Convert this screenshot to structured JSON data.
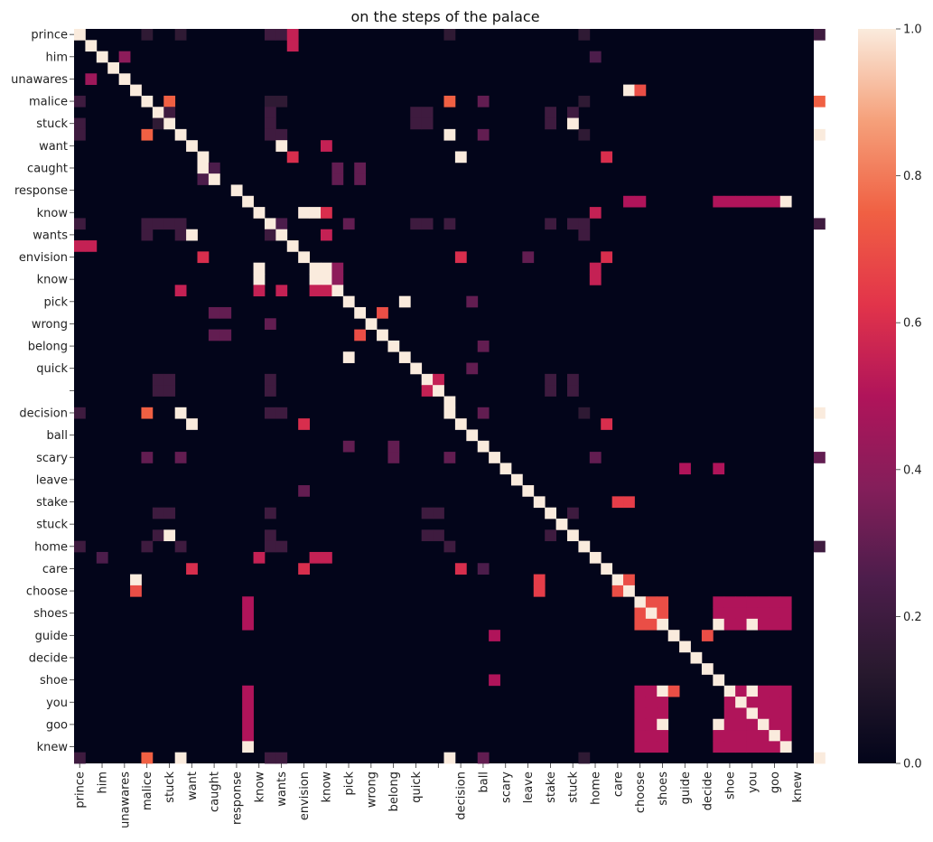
{
  "chart_data": {
    "type": "heatmap",
    "title": "on the steps of the palace",
    "colormap": "rocket",
    "colorbar": {
      "min": 0.0,
      "max": 1.0,
      "ticks": [
        "0.0",
        "0.2",
        "0.4",
        "0.6",
        "0.8",
        "1.0"
      ]
    },
    "tokens": [
      "prince",
      "",
      "him",
      "",
      "unawares",
      "",
      "malice",
      "",
      "stuck",
      "",
      "want",
      "",
      "caught",
      "",
      "response",
      "",
      "know",
      "",
      "wants",
      "",
      "envision",
      "",
      "know",
      "",
      "pick",
      "",
      "wrong",
      "",
      "belong",
      "",
      "quick",
      "",
      "",
      "",
      "decision",
      "",
      "ball",
      "",
      "scary",
      "",
      "leave",
      "",
      "stake",
      "",
      "stuck",
      "",
      "home",
      "",
      "care",
      "",
      "choose",
      "",
      "shoes",
      "",
      "guide",
      "",
      "decide",
      "",
      "shoe",
      "",
      "you",
      "",
      "goo",
      "",
      "knew",
      ""
    ],
    "cells": [
      [
        0,
        0,
        1
      ],
      [
        0,
        6,
        0.15
      ],
      [
        0,
        9,
        0.15
      ],
      [
        0,
        17,
        0.2
      ],
      [
        0,
        18,
        0.2
      ],
      [
        0,
        19,
        0.55
      ],
      [
        0,
        33,
        0.15
      ],
      [
        0,
        45,
        0.15
      ],
      [
        0,
        66,
        0.2
      ],
      [
        1,
        1,
        1
      ],
      [
        1,
        19,
        0.55
      ],
      [
        2,
        2,
        1
      ],
      [
        2,
        4,
        0.4
      ],
      [
        2,
        46,
        0.25
      ],
      [
        3,
        3,
        1
      ],
      [
        4,
        1,
        0.45
      ],
      [
        4,
        4,
        1
      ],
      [
        5,
        5,
        1
      ],
      [
        5,
        49,
        1
      ],
      [
        5,
        50,
        0.7
      ],
      [
        6,
        0,
        0.2
      ],
      [
        6,
        6,
        1
      ],
      [
        6,
        8,
        0.75
      ],
      [
        6,
        17,
        0.15
      ],
      [
        6,
        18,
        0.15
      ],
      [
        6,
        33,
        0.75
      ],
      [
        6,
        36,
        0.3
      ],
      [
        6,
        45,
        0.15
      ],
      [
        6,
        66,
        0.75
      ],
      [
        7,
        7,
        1
      ],
      [
        7,
        8,
        0.2
      ],
      [
        7,
        17,
        0.2
      ],
      [
        7,
        30,
        0.2
      ],
      [
        7,
        31,
        0.2
      ],
      [
        7,
        42,
        0.2
      ],
      [
        7,
        44,
        0.2
      ],
      [
        8,
        0,
        0.2
      ],
      [
        8,
        7,
        0.15
      ],
      [
        8,
        8,
        1
      ],
      [
        8,
        17,
        0.2
      ],
      [
        8,
        30,
        0.2
      ],
      [
        8,
        31,
        0.2
      ],
      [
        8,
        42,
        0.2
      ],
      [
        8,
        44,
        1
      ],
      [
        9,
        0,
        0.2
      ],
      [
        9,
        6,
        0.75
      ],
      [
        9,
        9,
        1
      ],
      [
        9,
        17,
        0.2
      ],
      [
        9,
        18,
        0.2
      ],
      [
        9,
        33,
        1
      ],
      [
        9,
        36,
        0.3
      ],
      [
        9,
        45,
        0.15
      ],
      [
        9,
        66,
        1
      ],
      [
        10,
        10,
        1
      ],
      [
        10,
        18,
        1
      ],
      [
        10,
        22,
        0.55
      ],
      [
        11,
        11,
        1
      ],
      [
        11,
        19,
        0.6
      ],
      [
        11,
        34,
        1
      ],
      [
        11,
        47,
        0.6
      ],
      [
        12,
        11,
        1
      ],
      [
        12,
        12,
        0.25
      ],
      [
        12,
        23,
        0.3
      ],
      [
        12,
        25,
        0.3
      ],
      [
        13,
        11,
        0.25
      ],
      [
        13,
        12,
        1
      ],
      [
        13,
        23,
        0.3
      ],
      [
        13,
        25,
        0.3
      ],
      [
        14,
        14,
        1
      ],
      [
        15,
        15,
        1
      ],
      [
        15,
        49,
        0.5
      ],
      [
        15,
        50,
        0.5
      ],
      [
        15,
        57,
        0.5
      ],
      [
        15,
        58,
        0.5
      ],
      [
        15,
        59,
        0.5
      ],
      [
        15,
        60,
        0.5
      ],
      [
        15,
        61,
        0.5
      ],
      [
        15,
        62,
        0.5
      ],
      [
        15,
        63,
        1
      ],
      [
        16,
        16,
        1
      ],
      [
        16,
        20,
        1
      ],
      [
        16,
        21,
        1
      ],
      [
        16,
        22,
        0.6
      ],
      [
        16,
        46,
        0.55
      ],
      [
        17,
        0,
        0.2
      ],
      [
        17,
        6,
        0.2
      ],
      [
        17,
        7,
        0.2
      ],
      [
        17,
        8,
        0.2
      ],
      [
        17,
        9,
        0.2
      ],
      [
        17,
        17,
        1
      ],
      [
        17,
        18,
        0.25
      ],
      [
        17,
        24,
        0.3
      ],
      [
        17,
        30,
        0.2
      ],
      [
        17,
        31,
        0.2
      ],
      [
        17,
        33,
        0.2
      ],
      [
        17,
        42,
        0.2
      ],
      [
        17,
        44,
        0.2
      ],
      [
        17,
        45,
        0.2
      ],
      [
        17,
        66,
        0.2
      ],
      [
        18,
        6,
        0.2
      ],
      [
        18,
        9,
        0.2
      ],
      [
        18,
        10,
        1
      ],
      [
        18,
        17,
        0.2
      ],
      [
        18,
        18,
        1
      ],
      [
        18,
        22,
        0.55
      ],
      [
        18,
        45,
        0.2
      ],
      [
        19,
        0,
        0.55
      ],
      [
        19,
        1,
        0.55
      ],
      [
        19,
        19,
        1
      ],
      [
        20,
        11,
        0.6
      ],
      [
        20,
        20,
        1
      ],
      [
        20,
        34,
        0.6
      ],
      [
        20,
        40,
        0.3
      ],
      [
        20,
        47,
        0.6
      ],
      [
        21,
        16,
        1
      ],
      [
        21,
        21,
        1
      ],
      [
        21,
        22,
        1
      ],
      [
        21,
        23,
        0.4
      ],
      [
        21,
        46,
        0.55
      ],
      [
        22,
        16,
        1
      ],
      [
        22,
        21,
        1
      ],
      [
        22,
        22,
        1
      ],
      [
        22,
        23,
        0.4
      ],
      [
        22,
        46,
        0.55
      ],
      [
        23,
        9,
        0.55
      ],
      [
        23,
        16,
        0.55
      ],
      [
        23,
        18,
        0.55
      ],
      [
        23,
        21,
        0.55
      ],
      [
        23,
        22,
        0.55
      ],
      [
        23,
        23,
        1
      ],
      [
        24,
        24,
        1
      ],
      [
        24,
        29,
        1
      ],
      [
        24,
        35,
        0.3
      ],
      [
        25,
        12,
        0.3
      ],
      [
        25,
        13,
        0.3
      ],
      [
        25,
        25,
        1
      ],
      [
        25,
        27,
        0.7
      ],
      [
        26,
        17,
        0.3
      ],
      [
        26,
        26,
        1
      ],
      [
        27,
        12,
        0.3
      ],
      [
        27,
        13,
        0.3
      ],
      [
        27,
        25,
        0.7
      ],
      [
        27,
        27,
        1
      ],
      [
        28,
        28,
        1
      ],
      [
        28,
        36,
        0.3
      ],
      [
        29,
        24,
        1
      ],
      [
        29,
        29,
        1
      ],
      [
        30,
        30,
        1
      ],
      [
        30,
        35,
        0.3
      ],
      [
        31,
        7,
        0.2
      ],
      [
        31,
        8,
        0.2
      ],
      [
        31,
        17,
        0.2
      ],
      [
        31,
        31,
        1
      ],
      [
        31,
        32,
        0.55
      ],
      [
        31,
        42,
        0.2
      ],
      [
        31,
        44,
        0.2
      ],
      [
        32,
        7,
        0.2
      ],
      [
        32,
        8,
        0.2
      ],
      [
        32,
        17,
        0.2
      ],
      [
        32,
        31,
        0.55
      ],
      [
        32,
        32,
        1
      ],
      [
        32,
        42,
        0.2
      ],
      [
        32,
        44,
        0.2
      ],
      [
        33,
        33,
        1
      ],
      [
        34,
        0,
        0.2
      ],
      [
        34,
        6,
        0.75
      ],
      [
        34,
        9,
        1
      ],
      [
        34,
        17,
        0.2
      ],
      [
        34,
        18,
        0.2
      ],
      [
        34,
        33,
        1
      ],
      [
        34,
        36,
        0.3
      ],
      [
        34,
        45,
        0.15
      ],
      [
        34,
        66,
        1
      ],
      [
        35,
        10,
        1
      ],
      [
        35,
        20,
        0.6
      ],
      [
        35,
        34,
        1
      ],
      [
        35,
        47,
        0.6
      ],
      [
        36,
        35,
        1
      ],
      [
        37,
        24,
        0.3
      ],
      [
        37,
        28,
        0.3
      ],
      [
        37,
        36,
        1
      ],
      [
        38,
        6,
        0.3
      ],
      [
        38,
        9,
        0.3
      ],
      [
        38,
        28,
        0.3
      ],
      [
        38,
        33,
        0.3
      ],
      [
        38,
        37,
        1
      ],
      [
        38,
        46,
        0.3
      ],
      [
        38,
        66,
        0.3
      ],
      [
        39,
        38,
        1
      ],
      [
        39,
        54,
        0.5
      ],
      [
        39,
        57,
        0.5
      ],
      [
        40,
        39,
        1
      ],
      [
        41,
        20,
        0.3
      ],
      [
        41,
        40,
        1
      ],
      [
        42,
        41,
        1
      ],
      [
        42,
        48,
        0.65
      ],
      [
        42,
        49,
        0.65
      ],
      [
        43,
        7,
        0.2
      ],
      [
        43,
        8,
        0.2
      ],
      [
        43,
        17,
        0.2
      ],
      [
        43,
        31,
        0.2
      ],
      [
        43,
        32,
        0.2
      ],
      [
        43,
        42,
        1
      ],
      [
        43,
        44,
        0.2
      ],
      [
        44,
        43,
        1
      ],
      [
        45,
        7,
        0.2
      ],
      [
        45,
        8,
        1
      ],
      [
        45,
        17,
        0.2
      ],
      [
        45,
        31,
        0.2
      ],
      [
        45,
        32,
        0.2
      ],
      [
        45,
        42,
        0.2
      ],
      [
        45,
        44,
        1
      ],
      [
        46,
        0,
        0.2
      ],
      [
        46,
        6,
        0.2
      ],
      [
        46,
        9,
        0.2
      ],
      [
        46,
        17,
        0.2
      ],
      [
        46,
        18,
        0.2
      ],
      [
        46,
        33,
        0.2
      ],
      [
        46,
        45,
        1
      ],
      [
        46,
        66,
        0.2
      ],
      [
        47,
        2,
        0.25
      ],
      [
        47,
        16,
        0.55
      ],
      [
        47,
        21,
        0.55
      ],
      [
        47,
        22,
        0.55
      ],
      [
        47,
        46,
        1
      ],
      [
        48,
        10,
        0.6
      ],
      [
        48,
        20,
        0.6
      ],
      [
        48,
        34,
        0.6
      ],
      [
        48,
        36,
        0.25
      ],
      [
        48,
        47,
        1
      ],
      [
        49,
        5,
        1
      ],
      [
        49,
        41,
        0.65
      ],
      [
        49,
        48,
        1
      ],
      [
        49,
        49,
        0.7
      ],
      [
        50,
        5,
        0.7
      ],
      [
        50,
        41,
        0.65
      ],
      [
        50,
        48,
        0.7
      ],
      [
        50,
        49,
        1
      ],
      [
        51,
        15,
        0.5
      ],
      [
        51,
        50,
        1
      ],
      [
        51,
        51,
        0.7
      ],
      [
        51,
        52,
        0.7
      ],
      [
        51,
        57,
        0.5
      ],
      [
        51,
        58,
        0.5
      ],
      [
        51,
        59,
        0.5
      ],
      [
        51,
        60,
        0.5
      ],
      [
        51,
        61,
        0.5
      ],
      [
        51,
        62,
        0.5
      ],
      [
        51,
        63,
        0.5
      ],
      [
        52,
        15,
        0.5
      ],
      [
        52,
        50,
        0.7
      ],
      [
        52,
        51,
        1
      ],
      [
        52,
        52,
        0.7
      ],
      [
        52,
        57,
        0.5
      ],
      [
        52,
        58,
        0.5
      ],
      [
        52,
        59,
        0.5
      ],
      [
        52,
        60,
        0.5
      ],
      [
        52,
        61,
        0.5
      ],
      [
        52,
        62,
        0.5
      ],
      [
        52,
        63,
        0.5
      ],
      [
        53,
        15,
        0.5
      ],
      [
        53,
        50,
        0.7
      ],
      [
        53,
        51,
        0.7
      ],
      [
        53,
        52,
        1
      ],
      [
        53,
        57,
        1
      ],
      [
        53,
        58,
        0.5
      ],
      [
        53,
        59,
        0.5
      ],
      [
        53,
        60,
        1
      ],
      [
        53,
        61,
        0.5
      ],
      [
        53,
        62,
        0.5
      ],
      [
        53,
        63,
        0.5
      ],
      [
        54,
        37,
        0.5
      ],
      [
        54,
        53,
        1
      ],
      [
        54,
        56,
        0.7
      ],
      [
        55,
        54,
        1
      ],
      [
        56,
        55,
        1
      ],
      [
        57,
        56,
        1
      ],
      [
        58,
        37,
        0.5
      ],
      [
        58,
        57,
        1
      ],
      [
        59,
        15,
        0.5
      ],
      [
        59,
        50,
        0.5
      ],
      [
        59,
        51,
        0.5
      ],
      [
        59,
        52,
        1
      ],
      [
        59,
        53,
        0.7
      ],
      [
        59,
        58,
        1
      ],
      [
        59,
        59,
        0.5
      ],
      [
        59,
        60,
        1
      ],
      [
        59,
        61,
        0.5
      ],
      [
        59,
        62,
        0.5
      ],
      [
        59,
        63,
        0.5
      ],
      [
        60,
        15,
        0.5
      ],
      [
        60,
        50,
        0.5
      ],
      [
        60,
        51,
        0.5
      ],
      [
        60,
        52,
        0.5
      ],
      [
        60,
        58,
        0.5
      ],
      [
        60,
        59,
        1
      ],
      [
        60,
        60,
        0.5
      ],
      [
        60,
        61,
        0.5
      ],
      [
        60,
        62,
        0.5
      ],
      [
        60,
        63,
        0.5
      ],
      [
        61,
        15,
        0.5
      ],
      [
        61,
        50,
        0.5
      ],
      [
        61,
        51,
        0.5
      ],
      [
        61,
        52,
        0.5
      ],
      [
        61,
        58,
        0.5
      ],
      [
        61,
        59,
        0.5
      ],
      [
        61,
        60,
        1
      ],
      [
        61,
        61,
        0.5
      ],
      [
        61,
        62,
        0.5
      ],
      [
        61,
        63,
        0.5
      ],
      [
        62,
        15,
        0.5
      ],
      [
        62,
        50,
        0.5
      ],
      [
        62,
        51,
        0.5
      ],
      [
        62,
        52,
        1
      ],
      [
        62,
        57,
        1
      ],
      [
        62,
        58,
        0.5
      ],
      [
        62,
        59,
        0.5
      ],
      [
        62,
        60,
        0.5
      ],
      [
        62,
        61,
        1
      ],
      [
        62,
        62,
        0.5
      ],
      [
        62,
        63,
        0.5
      ],
      [
        63,
        15,
        0.5
      ],
      [
        63,
        50,
        0.5
      ],
      [
        63,
        51,
        0.5
      ],
      [
        63,
        52,
        0.5
      ],
      [
        63,
        57,
        0.5
      ],
      [
        63,
        58,
        0.5
      ],
      [
        63,
        59,
        0.5
      ],
      [
        63,
        60,
        0.5
      ],
      [
        63,
        61,
        0.5
      ],
      [
        63,
        62,
        1
      ],
      [
        63,
        63,
        0.5
      ],
      [
        64,
        15,
        1
      ],
      [
        64,
        50,
        0.5
      ],
      [
        64,
        51,
        0.5
      ],
      [
        64,
        52,
        0.5
      ],
      [
        64,
        57,
        0.5
      ],
      [
        64,
        58,
        0.5
      ],
      [
        64,
        59,
        0.5
      ],
      [
        64,
        60,
        0.5
      ],
      [
        64,
        61,
        0.5
      ],
      [
        64,
        62,
        0.5
      ],
      [
        64,
        63,
        1
      ],
      [
        65,
        0,
        0.2
      ],
      [
        65,
        6,
        0.75
      ],
      [
        65,
        9,
        1
      ],
      [
        65,
        17,
        0.2
      ],
      [
        65,
        18,
        0.2
      ],
      [
        65,
        33,
        1
      ],
      [
        65,
        36,
        0.3
      ],
      [
        65,
        45,
        0.15
      ],
      [
        65,
        66,
        1
      ]
    ]
  }
}
